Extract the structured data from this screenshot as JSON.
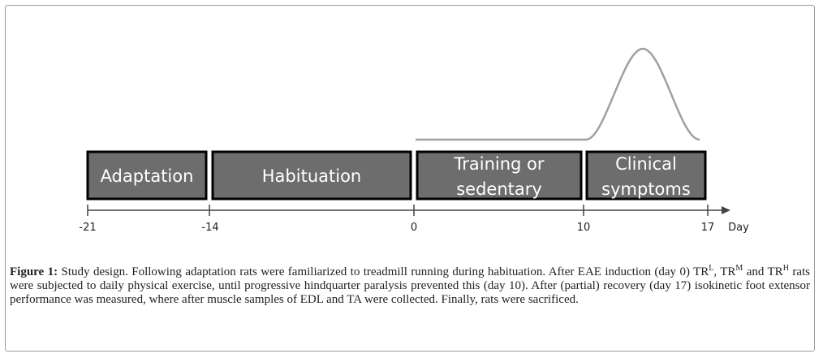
{
  "diagram": {
    "phases": [
      {
        "label": [
          "Adaptation"
        ]
      },
      {
        "label": [
          "Habituation"
        ]
      },
      {
        "label": [
          "Training or",
          "sedentary"
        ]
      },
      {
        "label": [
          "Clinical",
          "symptoms"
        ]
      }
    ],
    "ticks": [
      "-21",
      "-14",
      "0",
      "10",
      "17"
    ],
    "axis_unit": "Day",
    "colors": {
      "box_fill": "#6d6d6d",
      "box_border": "#000000",
      "curve": "#a0a0a0"
    }
  },
  "caption": {
    "figure_label": "Figure 1:",
    "text_1": " Study design. Following adaptation rats were familiarized to treadmill running during habituation. After EAE induction (day 0) TR",
    "sup_1": "L",
    "text_2": ", TR",
    "sup_2": "M",
    "text_3": " and TR",
    "sup_3": "H",
    "text_4": " rats were subjected to daily physical exercise, until progressive hindquarter paralysis prevented this (day 10). After (partial) recovery (day 17) isokinetic foot extensor performance was measured, where after muscle samples of EDL and TA were collected. Finally, rats were sacrificed."
  }
}
